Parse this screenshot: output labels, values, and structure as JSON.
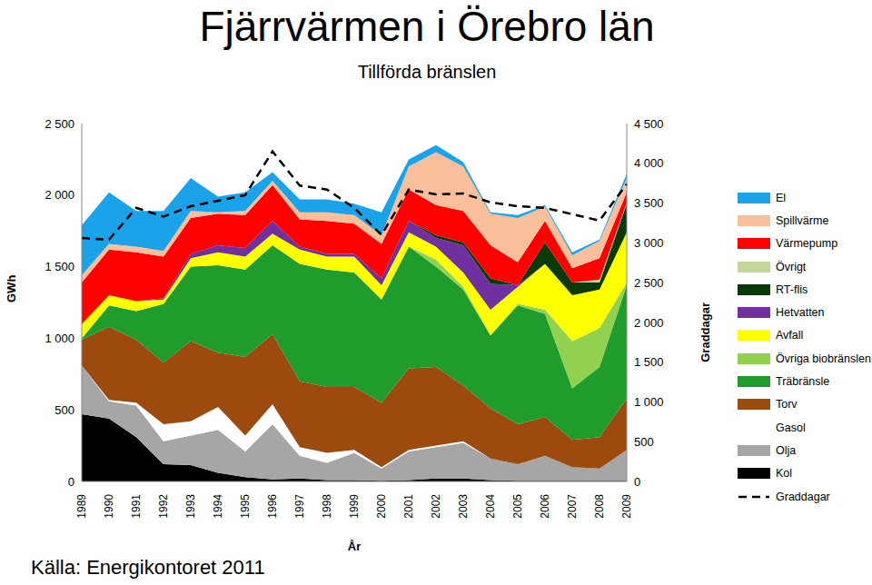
{
  "chart_data": {
    "type": "area",
    "title": "Fjärrvärmen i Örebro län",
    "subtitle": "Tillförda bränslen",
    "source": "Källa: Energikontoret 2011",
    "x_label": "År",
    "y_label": "GWh",
    "y2_label": "Graddagar",
    "stacked": true,
    "grid": false,
    "legend": "right",
    "categories": [
      "1989",
      "1990",
      "1991",
      "1992",
      "1993",
      "1994",
      "1995",
      "1996",
      "1997",
      "1998",
      "1999",
      "2000",
      "2001",
      "2002",
      "2003",
      "2004",
      "2005",
      "2006",
      "2007",
      "2008",
      "2009"
    ],
    "ylim": [
      0,
      2500
    ],
    "yticks": [
      0,
      500,
      {
        "value": 1000,
        "label": "1 000"
      },
      {
        "value": 1500,
        "label": "1 500"
      },
      {
        "value": 2000,
        "label": "2 000"
      },
      {
        "value": 2500,
        "label": "2 500"
      }
    ],
    "y2lim": [
      0,
      4500
    ],
    "y2ticks": [
      0,
      500,
      {
        "value": 1000,
        "label": "1 000"
      },
      {
        "value": 1500,
        "label": "1 500"
      },
      {
        "value": 2000,
        "label": "2 000"
      },
      {
        "value": 2500,
        "label": "2 500"
      },
      {
        "value": 3000,
        "label": "3 000"
      },
      {
        "value": 3500,
        "label": "3 500"
      },
      {
        "value": 4000,
        "label": "4 000"
      },
      {
        "value": 4500,
        "label": "4 500"
      }
    ],
    "series": [
      {
        "name": "Kol",
        "color": "#000000",
        "type": "area",
        "values": [
          470,
          440,
          310,
          120,
          115,
          60,
          30,
          15,
          20,
          10,
          10,
          5,
          10,
          20,
          20,
          10,
          5,
          5,
          5,
          5,
          5
        ]
      },
      {
        "name": "Olja",
        "color": "#a6a6a6",
        "type": "area",
        "values": [
          340,
          120,
          220,
          160,
          205,
          300,
          180,
          385,
          160,
          120,
          190,
          85,
          200,
          220,
          250,
          150,
          115,
          175,
          95,
          85,
          215
        ]
      },
      {
        "name": "Gasol",
        "color": "#ffffff",
        "type": "area",
        "values": [
          0,
          10,
          20,
          120,
          100,
          160,
          110,
          140,
          60,
          70,
          20,
          10,
          10,
          10,
          10,
          0,
          0,
          0,
          0,
          0,
          0
        ]
      },
      {
        "name": "Torv",
        "color": "#9c4a0e",
        "type": "area",
        "values": [
          180,
          510,
          440,
          430,
          560,
          380,
          550,
          490,
          460,
          460,
          440,
          450,
          570,
          550,
          390,
          350,
          280,
          270,
          190,
          220,
          360
        ]
      },
      {
        "name": "Träbränsle",
        "color": "#1f9c2b",
        "type": "area",
        "values": [
          10,
          150,
          200,
          410,
          520,
          610,
          610,
          620,
          820,
          820,
          800,
          720,
          850,
          700,
          670,
          510,
          830,
          720,
          360,
          490,
          790
        ]
      },
      {
        "name": "Övriga biobränslen",
        "color": "#92d050",
        "type": "area",
        "values": [
          0,
          0,
          0,
          0,
          0,
          0,
          0,
          0,
          0,
          0,
          0,
          0,
          0,
          50,
          20,
          0,
          10,
          30,
          330,
          270,
          20
        ]
      },
      {
        "name": "Avfall",
        "color": "#ffff00",
        "type": "area",
        "values": [
          100,
          70,
          70,
          30,
          60,
          90,
          90,
          80,
          100,
          90,
          110,
          100,
          100,
          90,
          100,
          180,
          120,
          320,
          320,
          270,
          350
        ]
      },
      {
        "name": "Hetvatten",
        "color": "#7030a0",
        "type": "area",
        "values": [
          0,
          0,
          0,
          10,
          30,
          50,
          60,
          90,
          20,
          20,
          20,
          50,
          80,
          60,
          190,
          180,
          10,
          0,
          0,
          0,
          0
        ]
      },
      {
        "name": "RT-flis",
        "color": "#0a3a0a",
        "type": "area",
        "values": [
          0,
          0,
          0,
          0,
          0,
          0,
          0,
          0,
          0,
          0,
          0,
          0,
          0,
          20,
          20,
          40,
          0,
          150,
          90,
          50,
          200
        ]
      },
      {
        "name": "Övrigt",
        "color": "#c4d79b",
        "type": "area",
        "values": [
          0,
          0,
          0,
          0,
          0,
          0,
          0,
          0,
          0,
          0,
          0,
          0,
          0,
          0,
          0,
          0,
          0,
          0,
          0,
          20,
          10
        ]
      },
      {
        "name": "Värmepump",
        "color": "#ff0000",
        "type": "area",
        "values": [
          290,
          320,
          340,
          290,
          250,
          220,
          230,
          250,
          190,
          230,
          210,
          240,
          220,
          210,
          220,
          230,
          160,
          150,
          100,
          150,
          70
        ]
      },
      {
        "name": "Spillvärme",
        "color": "#f9be9a",
        "type": "area",
        "values": [
          50,
          40,
          40,
          40,
          50,
          10,
          30,
          30,
          50,
          60,
          60,
          60,
          160,
          370,
          310,
          220,
          310,
          100,
          90,
          120,
          100
        ]
      },
      {
        "name": "El",
        "color": "#1aa3e8",
        "type": "area",
        "values": [
          350,
          360,
          250,
          280,
          230,
          110,
          130,
          60,
          90,
          90,
          80,
          160,
          50,
          50,
          30,
          10,
          20,
          10,
          20,
          10,
          30
        ]
      },
      {
        "name": "Graddagar",
        "color": "#000000",
        "type": "line",
        "line_style": "dashed",
        "axis": "y2",
        "values": [
          3060,
          3040,
          3440,
          3330,
          3460,
          3530,
          3600,
          4150,
          3720,
          3670,
          3440,
          3100,
          3670,
          3610,
          3620,
          3510,
          3460,
          3440,
          3360,
          3280,
          3740
        ]
      }
    ]
  }
}
